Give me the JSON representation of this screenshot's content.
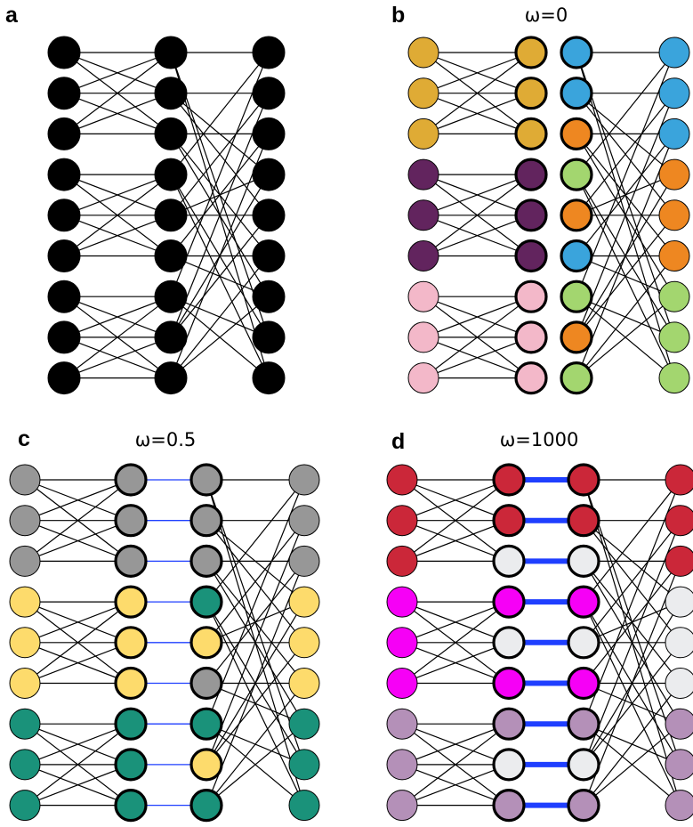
{
  "colors": {
    "black": "#000000",
    "gold": "#dfab35",
    "purple": "#62245e",
    "pink": "#f3b8c9",
    "blue": "#3aa4dc",
    "orange": "#ee8721",
    "green": "#a3d66f",
    "gray": "#979797",
    "yellow": "#fddb6c",
    "teal": "#1a927a",
    "red": "#cb2739",
    "magenta": "#f600f6",
    "lightgray": "#ebecee",
    "lilac": "#b490b8",
    "interlayer": "#1f3fff"
  },
  "panels": [
    {
      "id": "a",
      "letter": "a",
      "title": "",
      "inner_gap": false,
      "layers": [
        [
          "black",
          "black",
          "black",
          "black",
          "black",
          "black",
          "black",
          "black",
          "black"
        ],
        [
          "black",
          "black",
          "black",
          "black",
          "black",
          "black",
          "black",
          "black",
          "black"
        ],
        [
          "black",
          "black",
          "black",
          "black",
          "black",
          "black",
          "black",
          "black",
          "black"
        ]
      ],
      "interlayer_weight": 0
    },
    {
      "id": "b",
      "letter": "b",
      "title": "ω=0",
      "inner_gap": true,
      "layers": [
        [
          "gold",
          "gold",
          "gold",
          "purple",
          "purple",
          "purple",
          "pink",
          "pink",
          "pink"
        ],
        [
          "gold",
          "gold",
          "gold",
          "purple",
          "purple",
          "purple",
          "pink",
          "pink",
          "pink"
        ],
        [
          "blue",
          "blue",
          "orange",
          "green",
          "orange",
          "blue",
          "green",
          "orange",
          "green"
        ],
        [
          "blue",
          "blue",
          "blue",
          "orange",
          "orange",
          "orange",
          "green",
          "green",
          "green"
        ]
      ],
      "interlayer_weight": 0
    },
    {
      "id": "c",
      "letter": "c",
      "title": "ω=0.5",
      "inner_gap": true,
      "layers": [
        [
          "gray",
          "gray",
          "gray",
          "yellow",
          "yellow",
          "yellow",
          "teal",
          "teal",
          "teal"
        ],
        [
          "gray",
          "gray",
          "gray",
          "yellow",
          "yellow",
          "yellow",
          "teal",
          "teal",
          "teal"
        ],
        [
          "gray",
          "gray",
          "gray",
          "teal",
          "yellow",
          "gray",
          "teal",
          "yellow",
          "teal"
        ],
        [
          "gray",
          "gray",
          "gray",
          "yellow",
          "yellow",
          "yellow",
          "teal",
          "teal",
          "teal"
        ]
      ],
      "interlayer_weight": 0.5
    },
    {
      "id": "d",
      "letter": "d",
      "title": "ω=1000",
      "inner_gap": true,
      "layers": [
        [
          "red",
          "red",
          "red",
          "magenta",
          "magenta",
          "magenta",
          "lilac",
          "lilac",
          "lilac"
        ],
        [
          "red",
          "red",
          "lightgray",
          "magenta",
          "lightgray",
          "magenta",
          "lilac",
          "lightgray",
          "lilac"
        ],
        [
          "red",
          "red",
          "lightgray",
          "magenta",
          "lightgray",
          "magenta",
          "lilac",
          "lightgray",
          "lilac"
        ],
        [
          "red",
          "red",
          "red",
          "lightgray",
          "lightgray",
          "lightgray",
          "lilac",
          "lilac",
          "lilac"
        ]
      ],
      "interlayer_weight": 1000
    }
  ]
}
